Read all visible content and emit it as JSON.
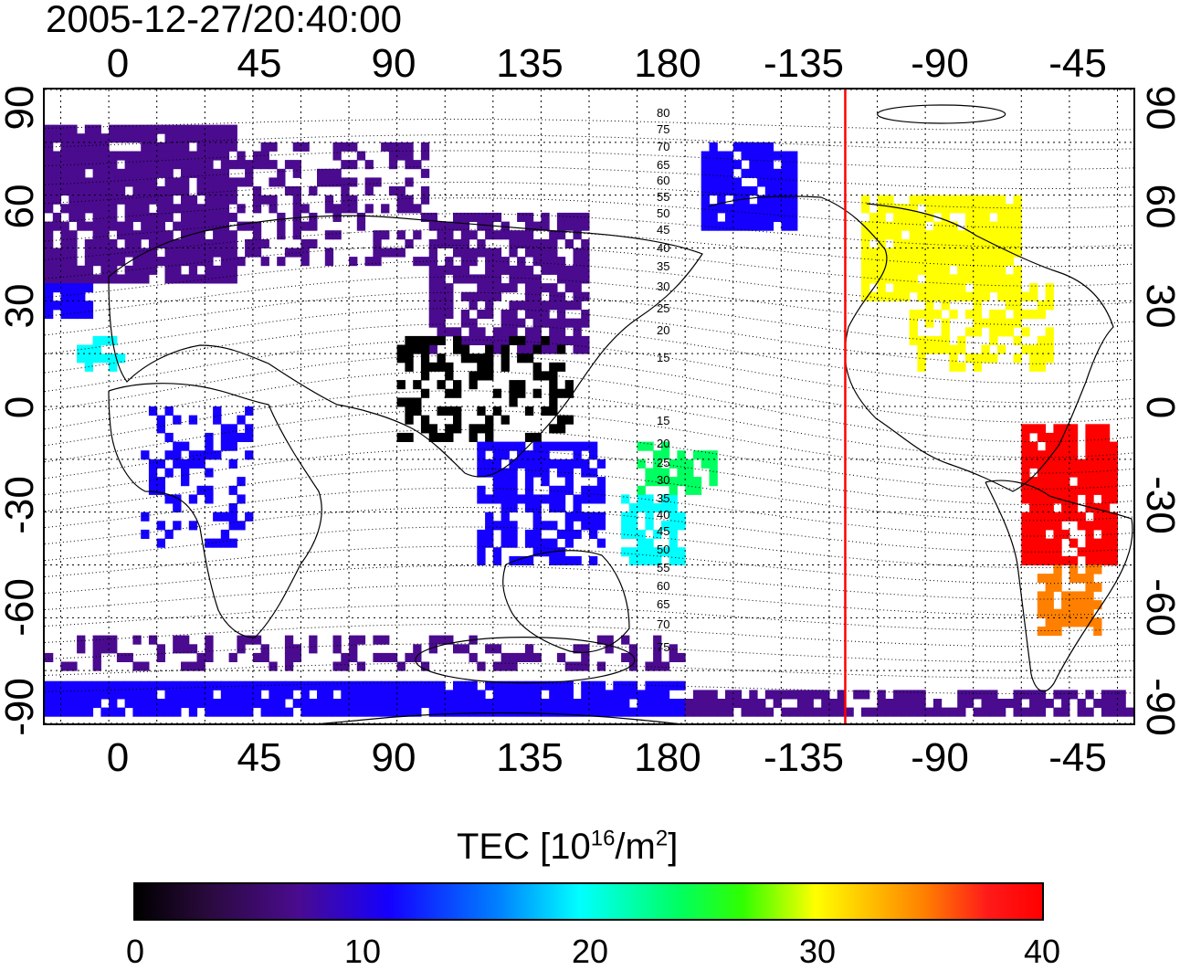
{
  "title": "2005-12-27/20:40:00",
  "x_ticks_top": [
    "0",
    "45",
    "90",
    "135",
    "180",
    "-135",
    "-90",
    "-45"
  ],
  "x_ticks_bottom": [
    "0",
    "45",
    "90",
    "135",
    "180",
    "-135",
    "-90",
    "-45"
  ],
  "y_ticks": [
    "90",
    "60",
    "30",
    "0",
    "-30",
    "-60",
    "-90"
  ],
  "contour_labels_north": [
    "80",
    "75",
    "70",
    "65",
    "60",
    "55",
    "50",
    "45",
    "40",
    "35",
    "30",
    "25",
    "20",
    "15"
  ],
  "contour_labels_south": [
    "15",
    "20",
    "25",
    "30",
    "35",
    "40",
    "45",
    "50",
    "55",
    "60",
    "65",
    "70",
    "75"
  ],
  "colorbar": {
    "label_prefix": "TEC  [10",
    "label_exp": "16",
    "label_mid": "/m",
    "label_exp2": "2",
    "label_suffix": "]",
    "ticks": [
      "0",
      "10",
      "20",
      "30",
      "40"
    ],
    "range": [
      0,
      40
    ],
    "colormap_stops": [
      "#000000",
      "#4a0b8f",
      "#1500ff",
      "#00ffff",
      "#00ff60",
      "#ffff00",
      "#ff8000",
      "#ff0000"
    ]
  },
  "terminator_longitude": -130,
  "terminator_color": "#ff0000",
  "map": {
    "projection": "equirectangular",
    "lon_range": [
      -20,
      320
    ],
    "lat_range": [
      -90,
      90
    ],
    "grid_lon_step": 15,
    "grid_lat_step": 15
  }
}
